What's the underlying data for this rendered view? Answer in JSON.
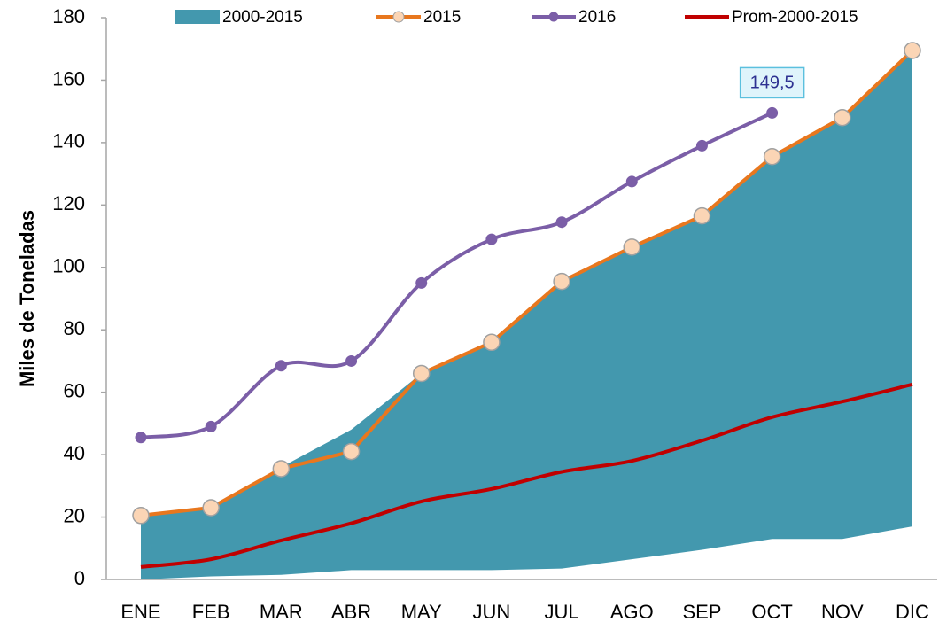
{
  "chart_data": {
    "type": "line",
    "y_label": "Miles de Toneladas",
    "categories": [
      "ENE",
      "FEB",
      "MAR",
      "ABR",
      "MAY",
      "JUN",
      "JUL",
      "AGO",
      "SEP",
      "OCT",
      "NOV",
      "DIC"
    ],
    "ylim": [
      0,
      180
    ],
    "yticks": [
      0,
      20,
      40,
      60,
      80,
      100,
      120,
      140,
      160,
      180
    ],
    "grid": false,
    "legend": "top",
    "series": [
      {
        "name": "2000-2015",
        "kind": "band",
        "color": "#4398ae",
        "low": [
          0,
          1,
          1.5,
          3,
          3,
          3,
          3.5,
          6.5,
          9.5,
          13,
          13,
          17
        ],
        "values": [
          21,
          23,
          36,
          48,
          66,
          76,
          96,
          106.5,
          116.5,
          135.5,
          148,
          169.5
        ]
      },
      {
        "name": "2015",
        "kind": "line",
        "color": "#e8771e",
        "marker": "#fbd5b5",
        "smooth": false,
        "values": [
          20.5,
          23,
          35.5,
          41,
          66,
          76,
          95.5,
          106.5,
          116.5,
          135.5,
          148,
          169.5
        ]
      },
      {
        "name": "2016",
        "kind": "line",
        "color": "#7b5ea7",
        "marker": "#7b5ea7",
        "smooth": true,
        "values": [
          45.5,
          49,
          68.5,
          70,
          95,
          109,
          114.5,
          127.5,
          139,
          149.5,
          null,
          null
        ],
        "value_labels": [
          null,
          null,
          null,
          null,
          null,
          null,
          null,
          null,
          null,
          "149,5",
          null,
          null
        ]
      },
      {
        "name": "Prom-2000-2015",
        "kind": "line",
        "color": "#c00000",
        "marker": null,
        "smooth": true,
        "values": [
          4,
          6.5,
          12.5,
          18,
          25,
          29,
          34.5,
          38,
          44.5,
          52,
          57,
          62.5
        ]
      }
    ]
  }
}
